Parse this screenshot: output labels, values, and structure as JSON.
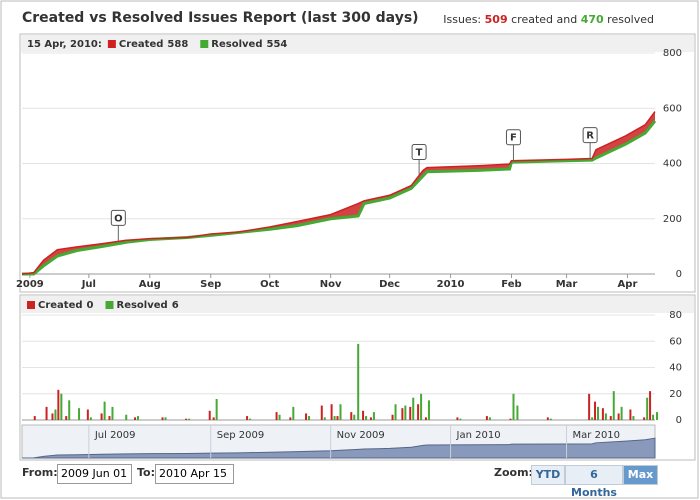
{
  "header": {
    "title": "Created vs Resolved Issues Report (last 300 days)",
    "summary": {
      "prefix": "Issues:",
      "created": 509,
      "middle": "created and",
      "resolved": 470,
      "suffix": "resolved"
    }
  },
  "chart_data": [
    {
      "type": "line",
      "legend_date": "15 Apr, 2010:",
      "x": [
        "2009-05-28",
        "2009-06-03",
        "2009-06-08",
        "2009-06-15",
        "2009-06-25",
        "2009-07-08",
        "2009-07-20",
        "2009-08-01",
        "2009-08-20",
        "2009-09-01",
        "2009-09-15",
        "2009-10-01",
        "2009-10-15",
        "2009-11-01",
        "2009-11-15",
        "2009-11-18",
        "2009-12-01",
        "2009-12-12",
        "2009-12-18",
        "2009-12-20",
        "2010-01-15",
        "2010-01-31",
        "2010-02-01",
        "2010-03-01",
        "2010-03-14",
        "2010-03-16",
        "2010-03-31",
        "2010-04-10",
        "2010-04-15"
      ],
      "series": [
        {
          "name": "Created",
          "color": "#cc2222",
          "values": [
            0,
            5,
            50,
            88,
            98,
            110,
            122,
            128,
            132,
            145,
            152,
            170,
            190,
            215,
            255,
            265,
            285,
            320,
            375,
            385,
            392,
            398,
            410,
            415,
            418,
            450,
            500,
            540,
            588
          ]
        },
        {
          "name": "Resolved",
          "color": "#44aa33",
          "values": [
            0,
            0,
            30,
            65,
            85,
            100,
            115,
            125,
            132,
            140,
            150,
            162,
            175,
            200,
            210,
            255,
            275,
            310,
            355,
            370,
            375,
            380,
            405,
            410,
            412,
            420,
            470,
            510,
            554
          ]
        }
      ],
      "xlim": [
        "2009-05-28",
        "2010-04-15"
      ],
      "xticks": [
        {
          "value": "2009-06-01",
          "label": "2009"
        },
        {
          "value": "2009-07-01",
          "label": "Jul"
        },
        {
          "value": "2009-08-01",
          "label": "Aug"
        },
        {
          "value": "2009-09-01",
          "label": "Sep"
        },
        {
          "value": "2009-10-01",
          "label": "Oct"
        },
        {
          "value": "2009-11-01",
          "label": "Nov"
        },
        {
          "value": "2009-12-01",
          "label": "Dec"
        },
        {
          "value": "2010-01-01",
          "label": "2010"
        },
        {
          "value": "2010-02-01",
          "label": "Feb"
        },
        {
          "value": "2010-03-01",
          "label": "Mar"
        },
        {
          "value": "2010-04-01",
          "label": "Apr"
        }
      ],
      "ylim": [
        0,
        800
      ],
      "yticks": [
        0,
        200,
        400,
        600,
        800
      ],
      "grid": true,
      "annotations": [
        {
          "x": "2009-07-16",
          "label": "O"
        },
        {
          "x": "2009-12-16",
          "label": "T"
        },
        {
          "x": "2010-02-02",
          "label": "F"
        },
        {
          "x": "2010-03-13",
          "label": "R"
        }
      ]
    },
    {
      "type": "bar",
      "x": [
        "2009-06-04",
        "2009-06-10",
        "2009-06-13",
        "2009-06-16",
        "2009-06-20",
        "2009-06-25",
        "2009-07-01",
        "2009-07-08",
        "2009-07-12",
        "2009-07-19",
        "2009-07-25",
        "2009-08-08",
        "2009-08-20",
        "2009-09-01",
        "2009-09-03",
        "2009-09-20",
        "2009-10-05",
        "2009-10-12",
        "2009-10-20",
        "2009-10-28",
        "2009-11-02",
        "2009-11-05",
        "2009-11-12",
        "2009-11-14",
        "2009-11-18",
        "2009-11-22",
        "2009-12-03",
        "2009-12-08",
        "2009-12-12",
        "2009-12-16",
        "2009-12-20",
        "2010-01-05",
        "2010-01-20",
        "2010-02-01",
        "2010-02-03",
        "2010-02-20",
        "2010-03-13",
        "2010-03-16",
        "2010-03-20",
        "2010-03-24",
        "2010-03-28",
        "2010-04-03",
        "2010-04-10",
        "2010-04-13",
        "2010-04-15"
      ],
      "series": [
        {
          "name": "Created",
          "color": "#cc2222",
          "values": [
            3,
            10,
            5,
            23,
            3,
            0,
            8,
            5,
            3,
            0,
            2,
            2,
            1,
            7,
            2,
            3,
            6,
            2,
            5,
            11,
            12,
            3,
            6,
            0,
            7,
            2,
            4,
            9,
            10,
            12,
            2,
            2,
            3,
            1,
            0,
            2,
            20,
            14,
            9,
            3,
            5,
            8,
            2,
            22,
            0
          ]
        },
        {
          "name": "Resolved",
          "color": "#44aa33",
          "values": [
            0,
            0,
            8,
            20,
            15,
            9,
            2,
            14,
            10,
            4,
            3,
            2,
            1,
            0,
            16,
            1,
            4,
            10,
            3,
            2,
            3,
            12,
            4,
            58,
            3,
            6,
            12,
            11,
            17,
            20,
            15,
            1,
            2,
            20,
            11,
            1,
            2,
            10,
            5,
            22,
            10,
            3,
            17,
            4,
            6
          ]
        }
      ],
      "xlim": [
        "2009-05-28",
        "2010-04-15"
      ],
      "ylim": [
        0,
        80
      ],
      "yticks": [
        0,
        20,
        40,
        60,
        80
      ],
      "grid": true
    },
    {
      "type": "navigator",
      "xlim": [
        "2009-05-28",
        "2010-04-15"
      ],
      "xticks": [
        {
          "value": "2009-07-01",
          "label": "Jul 2009"
        },
        {
          "value": "2009-09-01",
          "label": "Sep 2009"
        },
        {
          "value": "2009-11-01",
          "label": "Nov 2009"
        },
        {
          "value": "2010-01-01",
          "label": "Jan 2010"
        },
        {
          "value": "2010-03-01",
          "label": "Mar 2010"
        }
      ]
    }
  ],
  "controls": {
    "from_label": "From:",
    "from_value": "2009 Jun 01",
    "to_label": "To:",
    "to_value": "2010 Apr 15",
    "zoom_label": "Zoom:",
    "zoom_buttons": [
      "YTD",
      "6 Months",
      "Max"
    ]
  }
}
